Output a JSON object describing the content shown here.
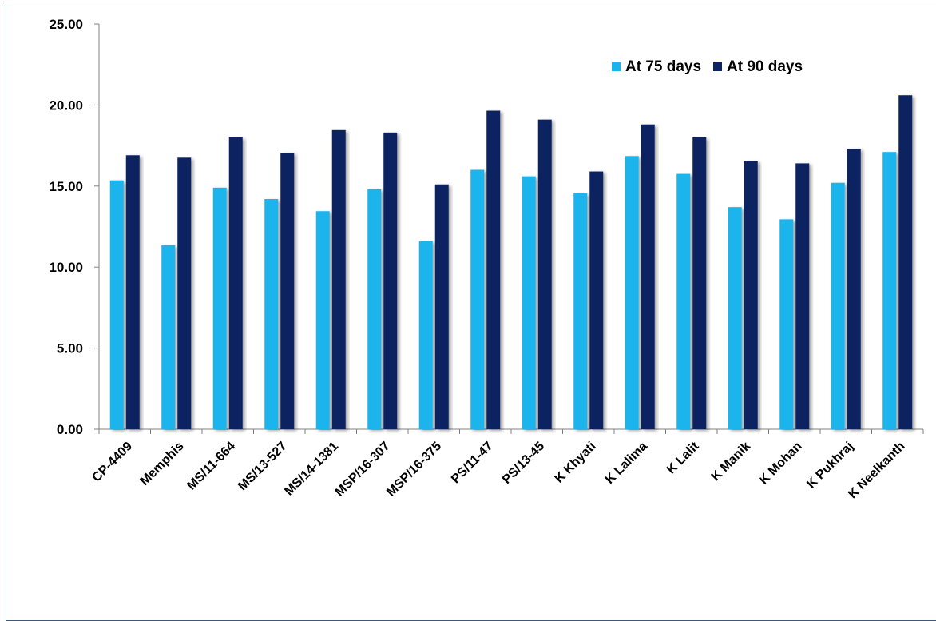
{
  "chart_data": {
    "type": "bar",
    "title": "",
    "xlabel": "",
    "ylabel": "",
    "ylim": [
      0,
      25
    ],
    "yticks": [
      "0.00",
      "5.00",
      "10.00",
      "15.00",
      "20.00",
      "25.00"
    ],
    "grid": false,
    "legend_position": "top-right",
    "categories": [
      "CP-4409",
      "Memphis",
      "MS/11-664",
      "MS/13-527",
      "MS/14-1381",
      "MSP/16-307",
      "MSP/16-375",
      "PS/11-47",
      "PS/13-45",
      "K Khyati",
      "K Lalima",
      "K Lalit",
      "K Manik",
      "K Mohan",
      "K Pukhraj",
      "K Neelkanth"
    ],
    "series": [
      {
        "name": "At 75 days",
        "color": "#1ab4ec",
        "values": [
          15.35,
          11.35,
          14.9,
          14.2,
          13.45,
          14.8,
          11.6,
          16.0,
          15.6,
          14.55,
          16.85,
          15.75,
          13.7,
          12.95,
          15.2,
          17.1
        ]
      },
      {
        "name": "At 90 days",
        "color": "#0c2461",
        "values": [
          16.9,
          16.75,
          18.0,
          17.05,
          18.45,
          18.3,
          15.1,
          19.65,
          19.1,
          15.9,
          18.8,
          18.0,
          16.55,
          16.4,
          17.3,
          20.6
        ]
      }
    ]
  }
}
